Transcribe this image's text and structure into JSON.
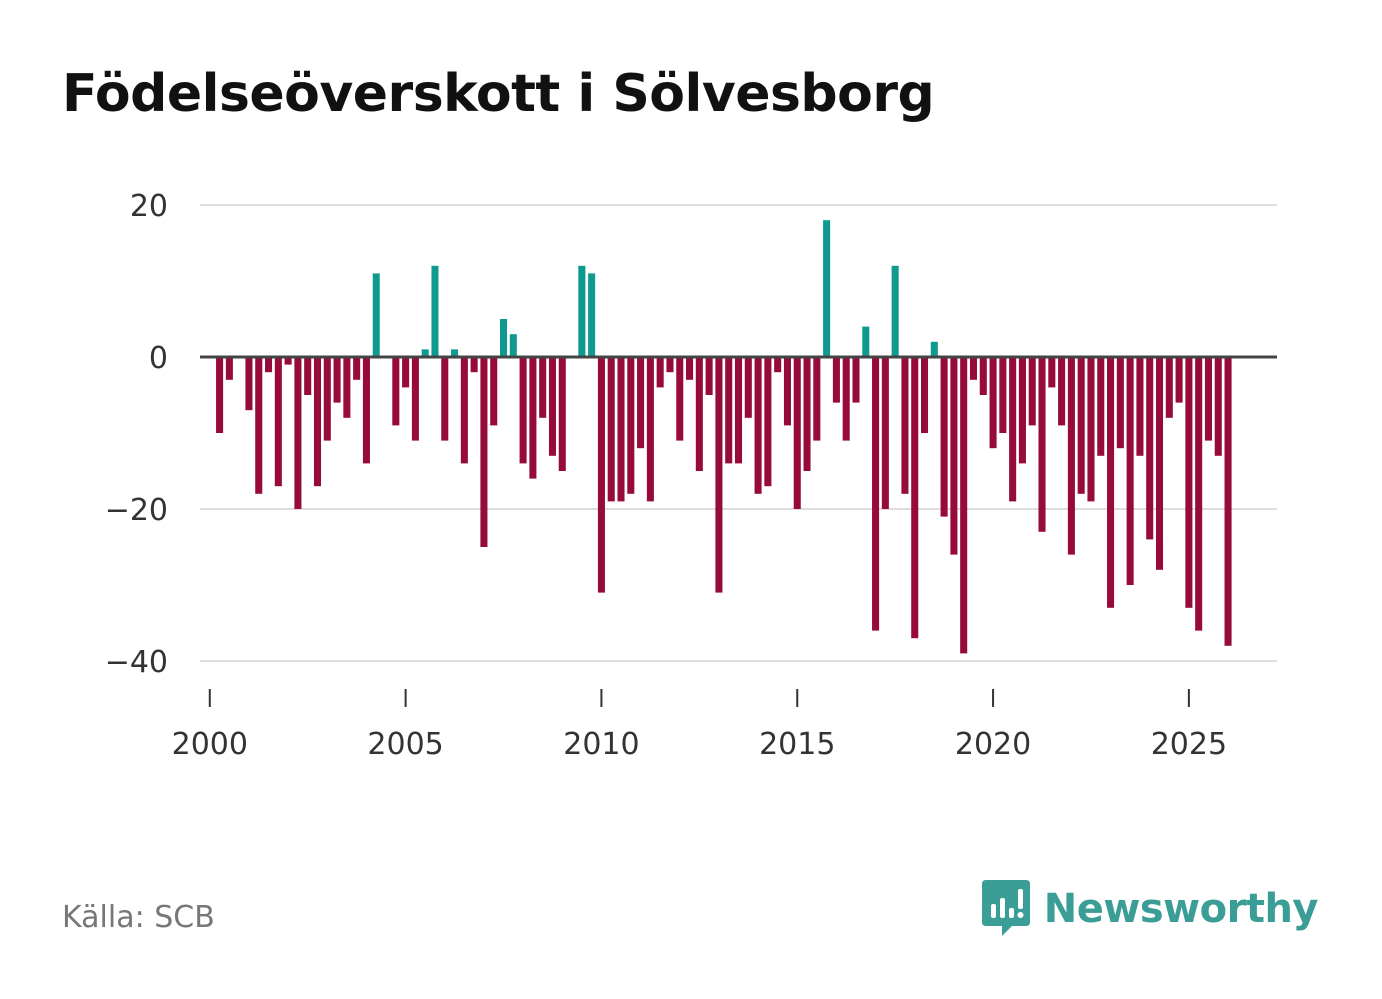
{
  "title": "Födelseöverskott i Sölvesborg",
  "source": "Källa: SCB",
  "brand": "Newsworthy",
  "colors": {
    "positive": "#0f9a90",
    "negative": "#960a3c",
    "zero_line": "#444444",
    "grid": "#dddddd",
    "brand": "#3a9e96"
  },
  "chart_data": {
    "type": "bar",
    "title": "Födelseöverskott i Sölvesborg",
    "xlabel": "",
    "ylabel": "",
    "ylim": [
      -45,
      20
    ],
    "y_ticks": [
      20,
      0,
      -20,
      -40
    ],
    "y_tick_labels": [
      "20",
      "0",
      "−20",
      "−40"
    ],
    "x_range": [
      1999.75,
      2027.25
    ],
    "x_ticks": [
      2000,
      2005,
      2010,
      2015,
      2020,
      2025
    ],
    "x_tick_labels": [
      "2000",
      "2005",
      "2010",
      "2015",
      "2020",
      "2025"
    ],
    "period": "quarterly, starting 2000 Q1",
    "start_year": 2000,
    "step": 0.25,
    "values": [
      0,
      -10,
      -3,
      0,
      -7,
      -18,
      -2,
      -17,
      -1,
      -20,
      -5,
      -17,
      -11,
      -6,
      -8,
      -3,
      -14,
      11,
      0,
      -9,
      -4,
      -11,
      1,
      12,
      -11,
      1,
      -14,
      -2,
      -25,
      -9,
      5,
      3,
      -14,
      -16,
      -8,
      -13,
      -15,
      0,
      12,
      11,
      -31,
      -19,
      -19,
      -18,
      -12,
      -19,
      -4,
      -2,
      -11,
      -3,
      -15,
      -5,
      -31,
      -14,
      -14,
      -8,
      -18,
      -17,
      -2,
      -9,
      -20,
      -15,
      -11,
      18,
      -6,
      -11,
      -6,
      4,
      -36,
      -20,
      12,
      -18,
      -37,
      -10,
      2,
      -21,
      -26,
      -39,
      -3,
      -5,
      -12,
      -10,
      -19,
      -14,
      -9,
      -23,
      -4,
      -9,
      -26,
      -18,
      -19,
      -13,
      -33,
      -12,
      -30,
      -13,
      -24,
      -28,
      -8,
      -6,
      -33,
      -36,
      -11,
      -13,
      -38
    ]
  }
}
